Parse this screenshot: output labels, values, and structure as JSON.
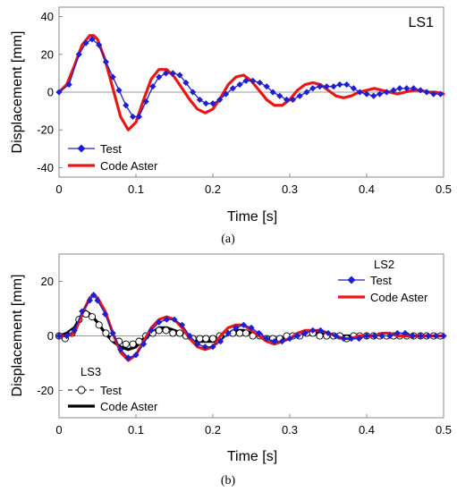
{
  "chart_data": [
    {
      "type": "line",
      "caption": "(a)",
      "annotation": "LS1",
      "xlabel": "Time  [s]",
      "ylabel": "Displacement  [mm]",
      "xlim": [
        0,
        0.5
      ],
      "ylim": [
        -45,
        45
      ],
      "xticks": [
        "0",
        "0.1",
        "0.2",
        "0.3",
        "0.4",
        "0.5"
      ],
      "xtick_values": [
        0,
        0.1,
        0.2,
        0.3,
        0.4,
        0.5
      ],
      "yticks": [
        "-40",
        "-20",
        "0",
        "20",
        "40"
      ],
      "ytick_values": [
        -40,
        -20,
        0,
        20,
        40
      ],
      "legend_position": "bottom-left",
      "series": [
        {
          "name": "Test",
          "color": "#1f1fd0",
          "marker": "diamond",
          "x": [
            0,
            0.013,
            0.026,
            0.035,
            0.043,
            0.052,
            0.061,
            0.07,
            0.078,
            0.087,
            0.096,
            0.104,
            0.113,
            0.122,
            0.13,
            0.139,
            0.148,
            0.157,
            0.165,
            0.174,
            0.183,
            0.191,
            0.2,
            0.209,
            0.217,
            0.226,
            0.235,
            0.243,
            0.252,
            0.261,
            0.27,
            0.278,
            0.287,
            0.296,
            0.304,
            0.313,
            0.322,
            0.33,
            0.339,
            0.348,
            0.357,
            0.365,
            0.374,
            0.383,
            0.391,
            0.4,
            0.409,
            0.417,
            0.426,
            0.435,
            0.443,
            0.452,
            0.461,
            0.47,
            0.478,
            0.487,
            0.496
          ],
          "y": [
            0,
            4,
            20,
            26,
            28,
            25,
            16,
            8,
            1,
            -7,
            -13,
            -13,
            -5,
            3,
            8,
            10,
            10,
            9,
            5,
            0,
            -4,
            -6,
            -6,
            -4,
            -1,
            2,
            4,
            6,
            6,
            5,
            3,
            0,
            -2,
            -4,
            -4,
            -2,
            0,
            2,
            3,
            3,
            3,
            4,
            4,
            2,
            0,
            -1,
            -2,
            -1,
            0,
            1,
            2,
            2,
            2,
            1,
            0,
            -1,
            -1
          ]
        },
        {
          "name": "Code Aster",
          "color": "#e81818",
          "x": [
            0,
            0.01,
            0.02,
            0.03,
            0.04,
            0.045,
            0.05,
            0.06,
            0.07,
            0.08,
            0.09,
            0.1,
            0.11,
            0.12,
            0.13,
            0.14,
            0.15,
            0.16,
            0.17,
            0.18,
            0.19,
            0.2,
            0.21,
            0.22,
            0.23,
            0.24,
            0.25,
            0.26,
            0.27,
            0.28,
            0.29,
            0.3,
            0.31,
            0.32,
            0.33,
            0.34,
            0.35,
            0.36,
            0.37,
            0.38,
            0.39,
            0.4,
            0.41,
            0.42,
            0.43,
            0.44,
            0.45,
            0.46,
            0.47,
            0.48,
            0.49,
            0.5
          ],
          "y": [
            0,
            4,
            14,
            25,
            30,
            30,
            28,
            17,
            2,
            -13,
            -20,
            -16,
            -4,
            7,
            12,
            12,
            8,
            2,
            -4,
            -9,
            -11,
            -9,
            -3,
            4,
            8,
            9,
            6,
            1,
            -4,
            -7,
            -7,
            -4,
            1,
            4,
            5,
            4,
            1,
            -2,
            -3,
            -2,
            0,
            1,
            2,
            1,
            0,
            -1,
            0,
            1,
            1,
            0,
            0,
            -1
          ]
        }
      ]
    },
    {
      "type": "line",
      "caption": "(b)",
      "xlabel": "Time  [s]",
      "ylabel": "Displacement  [mm]",
      "xlim": [
        0,
        0.5
      ],
      "ylim": [
        -30,
        30
      ],
      "xticks": [
        "0",
        "0.1",
        "0.2",
        "0.3",
        "0.4",
        "0.5"
      ],
      "xtick_values": [
        0,
        0.1,
        0.2,
        0.3,
        0.4,
        0.5
      ],
      "yticks": [
        "-20",
        "0",
        "20"
      ],
      "ytick_values": [
        -20,
        0,
        20
      ],
      "legend_groups": [
        {
          "title": "LS2",
          "position": "top-right",
          "entries": [
            "Test",
            "Code Aster"
          ]
        },
        {
          "title": "LS3",
          "position": "bottom-left",
          "entries": [
            "Test",
            "Code Aster"
          ]
        }
      ],
      "series": [
        {
          "name": "Test",
          "group": "LS2",
          "color": "#1f1fd0",
          "marker": "diamond",
          "x": [
            0,
            0.01,
            0.02,
            0.03,
            0.04,
            0.045,
            0.05,
            0.06,
            0.07,
            0.08,
            0.09,
            0.1,
            0.11,
            0.12,
            0.13,
            0.14,
            0.15,
            0.16,
            0.17,
            0.18,
            0.19,
            0.2,
            0.21,
            0.22,
            0.23,
            0.24,
            0.25,
            0.26,
            0.27,
            0.28,
            0.29,
            0.3,
            0.31,
            0.32,
            0.33,
            0.34,
            0.35,
            0.36,
            0.37,
            0.38,
            0.39,
            0.4,
            0.41,
            0.42,
            0.43,
            0.44,
            0.45,
            0.46,
            0.47,
            0.48,
            0.49,
            0.5
          ],
          "y": [
            0,
            0,
            2,
            9,
            13,
            15,
            13,
            8,
            1,
            -5,
            -8,
            -7,
            -3,
            2,
            5,
            6,
            6,
            4,
            0,
            -3,
            -4,
            -4,
            -2,
            1,
            3,
            4,
            3,
            1,
            -1,
            -2,
            -2,
            -1,
            0,
            1,
            2,
            2,
            1,
            0,
            -1,
            -1,
            -1,
            0,
            0,
            0,
            0,
            1,
            1,
            0,
            0,
            0,
            0,
            0
          ]
        },
        {
          "name": "Code Aster",
          "group": "LS2",
          "color": "#e81818",
          "x": [
            0,
            0.01,
            0.02,
            0.03,
            0.04,
            0.045,
            0.05,
            0.06,
            0.07,
            0.08,
            0.09,
            0.1,
            0.11,
            0.12,
            0.13,
            0.14,
            0.15,
            0.16,
            0.17,
            0.18,
            0.19,
            0.2,
            0.21,
            0.22,
            0.23,
            0.24,
            0.25,
            0.26,
            0.27,
            0.28,
            0.29,
            0.3,
            0.31,
            0.32,
            0.33,
            0.34,
            0.35,
            0.36,
            0.37,
            0.38,
            0.39,
            0.4,
            0.41,
            0.42,
            0.43,
            0.44,
            0.45,
            0.46,
            0.47,
            0.48,
            0.49,
            0.5
          ],
          "y": [
            0,
            0,
            1,
            8,
            14,
            15,
            14,
            9,
            1,
            -6,
            -9,
            -7,
            -2,
            3,
            6,
            7,
            6,
            3,
            -1,
            -4,
            -5,
            -4,
            0,
            3,
            4,
            4,
            2,
            0,
            -2,
            -3,
            -2,
            -1,
            1,
            2,
            2,
            2,
            1,
            0,
            -1,
            -1,
            0,
            0,
            0,
            1,
            1,
            0,
            0,
            0,
            0,
            0,
            0,
            0
          ]
        },
        {
          "name": "Test",
          "group": "LS3",
          "color": "#000000",
          "marker": "circle",
          "x": [
            0,
            0.008,
            0.017,
            0.026,
            0.035,
            0.043,
            0.052,
            0.061,
            0.07,
            0.078,
            0.087,
            0.096,
            0.104,
            0.113,
            0.122,
            0.13,
            0.139,
            0.148,
            0.157,
            0.165,
            0.174,
            0.183,
            0.191,
            0.2,
            0.209,
            0.217,
            0.226,
            0.235,
            0.243,
            0.252,
            0.261,
            0.27,
            0.278,
            0.287,
            0.296,
            0.304,
            0.313,
            0.322,
            0.33,
            0.339,
            0.348,
            0.357,
            0.365,
            0.374,
            0.383,
            0.391,
            0.4,
            0.409,
            0.417,
            0.426,
            0.435,
            0.443,
            0.452,
            0.461,
            0.47,
            0.478,
            0.487,
            0.496
          ],
          "y": [
            0,
            -1,
            1,
            6,
            8,
            7,
            4,
            1,
            -1,
            -2,
            -3,
            -3,
            -2,
            0,
            1,
            2,
            2,
            1,
            1,
            0,
            -1,
            -1,
            -1,
            -1,
            0,
            1,
            1,
            1,
            1,
            0,
            0,
            -1,
            -1,
            -1,
            0,
            0,
            0,
            1,
            1,
            0,
            0,
            0,
            0,
            -1,
            0,
            0,
            0,
            0,
            0,
            0,
            0,
            0,
            0,
            0,
            0,
            0,
            0,
            0
          ]
        },
        {
          "name": "Code Aster",
          "group": "LS3",
          "color": "#000000",
          "x": [
            0,
            0.01,
            0.02,
            0.03,
            0.035,
            0.04,
            0.05,
            0.06,
            0.07,
            0.08,
            0.09,
            0.1,
            0.11,
            0.12,
            0.13,
            0.14,
            0.15,
            0.16,
            0.17,
            0.18,
            0.19,
            0.2,
            0.21,
            0.22,
            0.23,
            0.24,
            0.25,
            0.26,
            0.27,
            0.28,
            0.29,
            0.3,
            0.31,
            0.32,
            0.33,
            0.34,
            0.35,
            0.36,
            0.37,
            0.38,
            0.39,
            0.4,
            0.41,
            0.42,
            0.43,
            0.44,
            0.45,
            0.46,
            0.47,
            0.48,
            0.49,
            0.5
          ],
          "y": [
            0,
            1,
            3,
            8,
            9,
            8,
            5,
            1,
            -2,
            -4,
            -5,
            -4,
            -1,
            1,
            3,
            3,
            2,
            1,
            -1,
            -2,
            -2,
            -2,
            -1,
            1,
            2,
            2,
            1,
            0,
            -1,
            -1,
            -1,
            0,
            0,
            1,
            1,
            1,
            0,
            0,
            0,
            0,
            0,
            0,
            0,
            0,
            0,
            0,
            0,
            0,
            0,
            0,
            0,
            0
          ]
        }
      ]
    }
  ]
}
